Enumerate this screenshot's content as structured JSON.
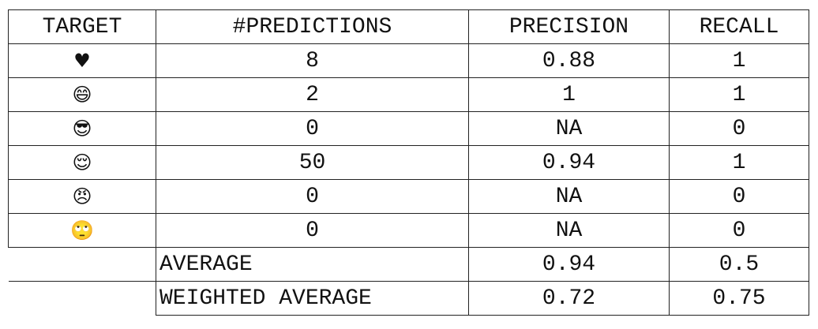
{
  "table": {
    "header": [
      "TARGET",
      "#PREDICTIONS",
      "PRECISION",
      "RECALL"
    ],
    "rows": [
      [
        "♥",
        "8",
        "0.88",
        "1"
      ],
      [
        "😄",
        "2",
        "1",
        "1"
      ],
      [
        "😎",
        "0",
        "NA",
        "0"
      ],
      [
        "😌",
        "50",
        "0.94",
        "1"
      ],
      [
        "😠",
        "0",
        "NA",
        "0"
      ],
      [
        "🙄",
        "0",
        "NA",
        "0"
      ]
    ],
    "summary": [
      [
        "AVERAGE",
        "0.94",
        "0.5"
      ],
      [
        "WEIGHTED AVERAGE",
        "0.72",
        "0.75"
      ]
    ]
  }
}
